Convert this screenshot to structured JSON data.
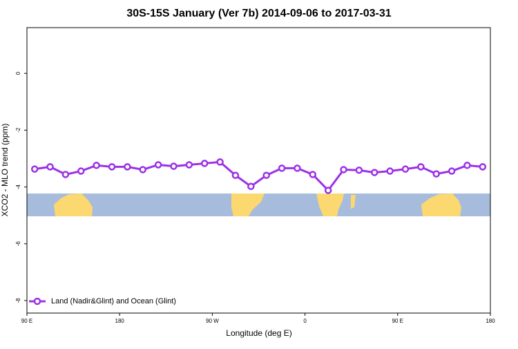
{
  "chart_data": {
    "type": "line",
    "title": "30S-15S January (Ver 7b)   2014-09-06 to 2017-03-31",
    "x_label": "Longitude (deg E)",
    "y_label": "XCO2 - MLO trend (ppm)",
    "x": [
      97.5,
      112.5,
      127.5,
      142.5,
      157.5,
      172.5,
      187.5,
      202.5,
      217.5,
      232.5,
      247.5,
      262.5,
      277.5,
      292.5,
      307.5,
      322.5,
      337.5,
      352.5,
      367.5,
      382.5,
      397.5,
      412.5,
      427.5,
      442.5,
      457.5,
      472.5,
      487.5,
      502.5,
      517.5,
      532.5
    ],
    "series": [
      {
        "name": "Land (Nadir&Glint) and Ocean (Glint)",
        "color": "#9b30e8",
        "values": [
          -3.37,
          -3.29,
          -3.56,
          -3.44,
          -3.24,
          -3.29,
          -3.29,
          -3.39,
          -3.22,
          -3.27,
          -3.22,
          -3.17,
          -3.12,
          -3.59,
          -3.98,
          -3.59,
          -3.34,
          -3.34,
          -3.56,
          -4.12,
          -3.39,
          -3.41,
          -3.49,
          -3.44,
          -3.37,
          -3.29,
          -3.54,
          -3.44,
          -3.24,
          -3.29
        ]
      }
    ],
    "xlim": [
      90,
      540
    ],
    "xticks": [
      {
        "value": 90,
        "label": "90 E"
      },
      {
        "value": 180,
        "label": "180"
      },
      {
        "value": 270,
        "label": "90 W"
      },
      {
        "value": 360,
        "label": "0"
      },
      {
        "value": 450,
        "label": "90 E"
      },
      {
        "value": 540,
        "label": "180"
      }
    ],
    "ylim": [
      -8.44,
      1.61
    ],
    "yticks": [
      0,
      -2,
      -4,
      -6,
      -8
    ],
    "legend": "bottom-left"
  }
}
